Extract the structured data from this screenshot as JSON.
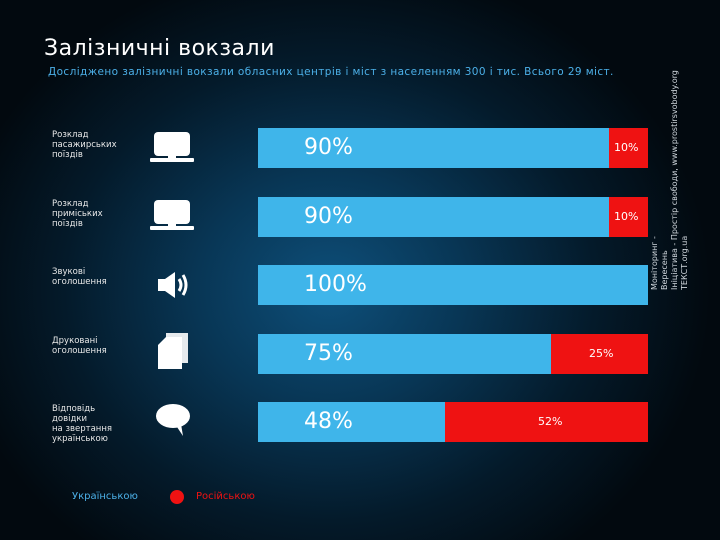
{
  "title": "Залізничні вокзали",
  "subtitle": "Досліджено залізничні вокзали  обласних центрів і міст з населенням 300 і тис. Всього 29 міст.",
  "colors": {
    "ukrainian": "#3fb5ea",
    "russian": "#ef1212"
  },
  "chart_data": {
    "type": "bar",
    "orientation": "horizontal",
    "stacked": true,
    "categories": [
      "Розклад пасажирських поїздів",
      "Розклад приміських поїздів",
      "Звукові оголошення",
      "Друковані оголошення",
      "Відповідь довідки на звертання українською"
    ],
    "category_lines": [
      [
        "Розклад",
        "пасажирських",
        "поїздів"
      ],
      [
        "Розклад",
        "приміських",
        "поїздів"
      ],
      [
        "Звукові",
        "оголошення"
      ],
      [
        "Друковані",
        "оголошення"
      ],
      [
        "Відповідь",
        "довідки",
        "на звертання",
        "українською"
      ]
    ],
    "icons": [
      "monitor-icon",
      "monitor-icon",
      "speaker-icon",
      "documents-icon",
      "speech-bubble-icon"
    ],
    "series": [
      {
        "name": "Українською",
        "values": [
          90,
          90,
          100,
          75,
          48
        ],
        "labels": [
          "90%",
          "90%",
          "100%",
          "75%",
          "48%"
        ]
      },
      {
        "name": "Російською",
        "values": [
          10,
          10,
          0,
          25,
          52
        ],
        "labels": [
          "10%",
          "10%",
          "",
          "25%",
          "52%"
        ]
      }
    ],
    "xlim": [
      0,
      100
    ],
    "legend_placement": "bottom-left"
  },
  "source_lines": [
    "Моніторинг -",
    "Вересень",
    "Ініціатива - Простір свободи, www.prostirsvobody.org",
    "ТЕКСТ.org.ua"
  ]
}
